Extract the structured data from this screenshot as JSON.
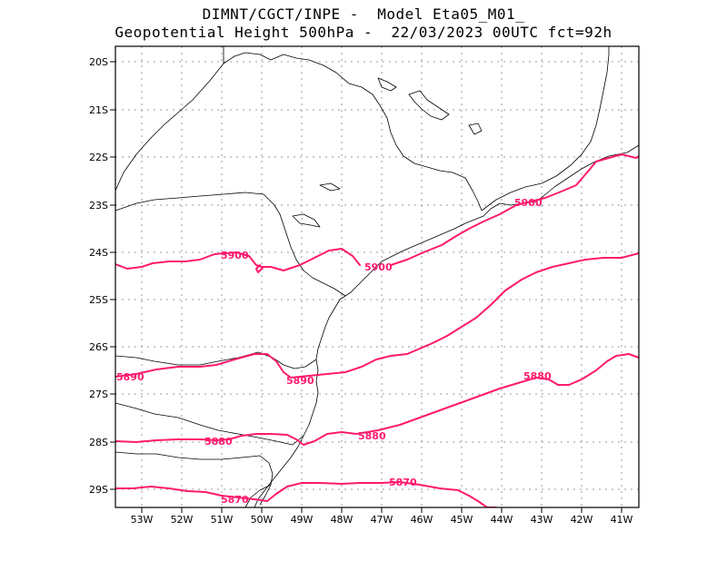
{
  "header": {
    "line1": "DIMNT/CGCT/INPE -  Model Eta05_M01_",
    "line2": "Geopotential Height 500hPa -  22/03/2023 00UTC fct=92h"
  },
  "axes": {
    "lat_labels": [
      "20S",
      "21S",
      "22S",
      "23S",
      "24S",
      "25S",
      "26S",
      "27S",
      "28S",
      "29S"
    ],
    "lon_labels": [
      "53W",
      "52W",
      "51W",
      "50W",
      "49W",
      "48W",
      "47W",
      "46W",
      "45W",
      "44W",
      "43W",
      "42W",
      "41W"
    ],
    "lat_range": [
      -29.4,
      -19.7
    ],
    "lon_range": [
      -53.6,
      -40.5
    ],
    "grid": true
  },
  "contours": {
    "color": "#ff1a6e",
    "levels": [
      {
        "value": "5900",
        "labels": [
          "5900",
          "5900",
          "5900"
        ]
      },
      {
        "value": "5890",
        "labels": [
          "5890",
          "5890"
        ]
      },
      {
        "value": "5880",
        "labels": [
          "5880",
          "5880",
          "5880"
        ]
      },
      {
        "value": "5870",
        "labels": [
          "5870",
          "5870"
        ]
      }
    ]
  }
}
